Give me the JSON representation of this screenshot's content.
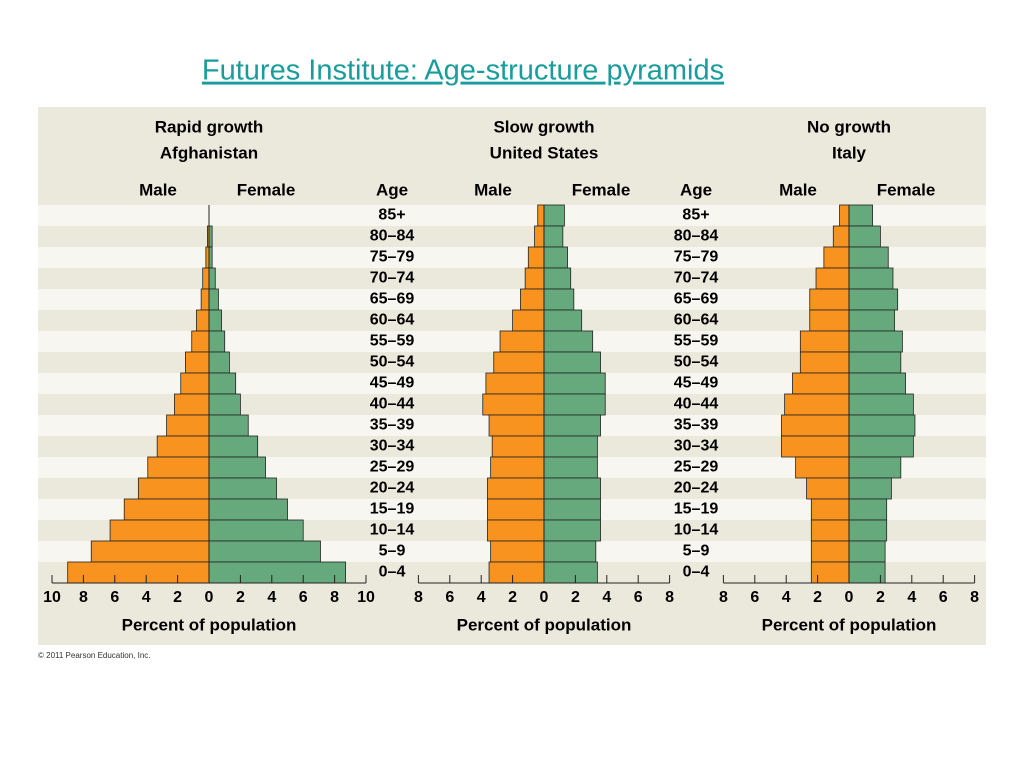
{
  "title": "Futures Institute: Age-structure pyramids",
  "copyright": "© 2011 Pearson Education, Inc.",
  "chart_data": [
    {
      "type": "pyramid",
      "title": "Rapid growth",
      "subtitle": "Afghanistan",
      "xlabel": "Percent of population",
      "category_label": "Age",
      "categories": [
        "85+",
        "80–84",
        "75–79",
        "70–74",
        "65–69",
        "60–64",
        "55–59",
        "50–54",
        "45–49",
        "40–44",
        "35–39",
        "30–34",
        "25–29",
        "20–24",
        "15–19",
        "10–14",
        "5–9",
        "0–4"
      ],
      "series": [
        {
          "name": "Male",
          "color": "#f7931e",
          "values": [
            0,
            0.1,
            0.2,
            0.4,
            0.5,
            0.8,
            1.1,
            1.5,
            1.8,
            2.2,
            2.7,
            3.3,
            3.9,
            4.5,
            5.4,
            6.3,
            7.5,
            9.0
          ]
        },
        {
          "name": "Female",
          "color": "#66a97c",
          "values": [
            0,
            0.2,
            0.2,
            0.4,
            0.6,
            0.8,
            1.0,
            1.3,
            1.7,
            2.0,
            2.5,
            3.1,
            3.6,
            4.3,
            5.0,
            6.0,
            7.1,
            8.7
          ]
        }
      ],
      "xlim": [
        -10,
        10
      ],
      "xticks": [
        {
          "value": -10,
          "label": "10"
        },
        {
          "value": -8,
          "label": "8"
        },
        {
          "value": -6,
          "label": "6"
        },
        {
          "value": -4,
          "label": "4"
        },
        {
          "value": -2,
          "label": "2"
        },
        0,
        2,
        4,
        6,
        8,
        10
      ]
    },
    {
      "type": "pyramid",
      "title": "Slow growth",
      "subtitle": "United States",
      "xlabel": "Percent of population",
      "category_label": "Age",
      "categories": [
        "85+",
        "80–84",
        "75–79",
        "70–74",
        "65–69",
        "60–64",
        "55–59",
        "50–54",
        "45–49",
        "40–44",
        "35–39",
        "30–34",
        "25–29",
        "20–24",
        "15–19",
        "10–14",
        "5–9",
        "0–4"
      ],
      "series": [
        {
          "name": "Male",
          "color": "#f7931e",
          "values": [
            0.4,
            0.6,
            1.0,
            1.2,
            1.5,
            2.0,
            2.8,
            3.2,
            3.7,
            3.9,
            3.5,
            3.3,
            3.4,
            3.6,
            3.6,
            3.6,
            3.4,
            3.5
          ]
        },
        {
          "name": "Female",
          "color": "#66a97c",
          "values": [
            1.3,
            1.2,
            1.5,
            1.7,
            1.9,
            2.4,
            3.1,
            3.6,
            3.9,
            3.9,
            3.6,
            3.4,
            3.4,
            3.6,
            3.6,
            3.6,
            3.3,
            3.4
          ]
        }
      ],
      "xlim": [
        -8,
        8
      ],
      "xticks": [
        {
          "value": -8,
          "label": "8"
        },
        {
          "value": -6,
          "label": "6"
        },
        {
          "value": -4,
          "label": "4"
        },
        {
          "value": -2,
          "label": "2"
        },
        0,
        2,
        4,
        6,
        8
      ]
    },
    {
      "type": "pyramid",
      "title": "No growth",
      "subtitle": "Italy",
      "xlabel": "Percent of population",
      "series": [
        {
          "name": "Male",
          "color": "#f7931e",
          "values": [
            0.6,
            1.0,
            1.6,
            2.1,
            2.5,
            2.5,
            3.1,
            3.1,
            3.6,
            4.1,
            4.3,
            4.3,
            3.4,
            2.7,
            2.4,
            2.4,
            2.4,
            2.4
          ]
        },
        {
          "name": "Female",
          "color": "#66a97c",
          "values": [
            1.5,
            2.0,
            2.5,
            2.8,
            3.1,
            2.9,
            3.4,
            3.3,
            3.6,
            4.1,
            4.2,
            4.1,
            3.3,
            2.7,
            2.4,
            2.4,
            2.3,
            2.3
          ]
        }
      ],
      "xlim": [
        -8,
        8
      ],
      "xticks": [
        {
          "value": -8,
          "label": "8"
        },
        {
          "value": -6,
          "label": "6"
        },
        {
          "value": -4,
          "label": "4"
        },
        {
          "value": -2,
          "label": "2"
        },
        0,
        2,
        4,
        6,
        8
      ]
    }
  ]
}
